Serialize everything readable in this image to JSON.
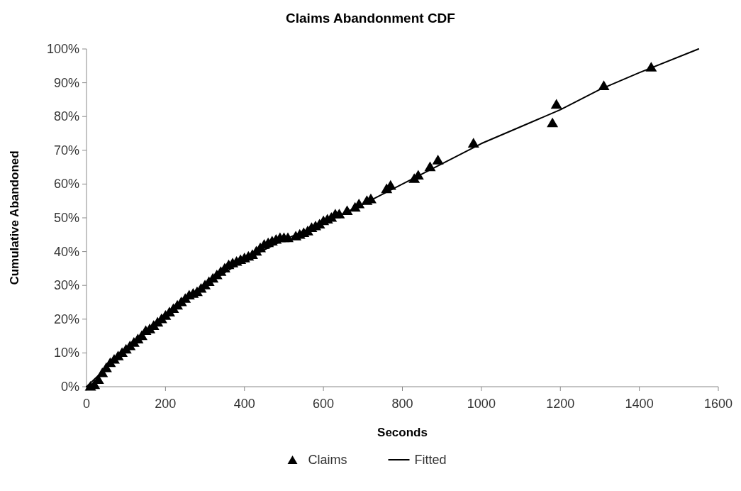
{
  "chart_data": {
    "type": "scatter",
    "title": "Claims Abandonment CDF",
    "xlabel": "Seconds",
    "ylabel": "Cumulative Abandoned",
    "xlim": [
      0,
      1600
    ],
    "xticks": [
      0,
      200,
      400,
      600,
      800,
      1000,
      1200,
      1400,
      1600
    ],
    "ylim": [
      0,
      100
    ],
    "yticks": [
      {
        "value": 0,
        "label": "0%"
      },
      {
        "value": 10,
        "label": "10%"
      },
      {
        "value": 20,
        "label": "20%"
      },
      {
        "value": 30,
        "label": "30%"
      },
      {
        "value": 40,
        "label": "40%"
      },
      {
        "value": 50,
        "label": "50%"
      },
      {
        "value": 60,
        "label": "60%"
      },
      {
        "value": 70,
        "label": "70%"
      },
      {
        "value": 80,
        "label": "80%"
      },
      {
        "value": 90,
        "label": "90%"
      },
      {
        "value": 100,
        "label": "100%"
      }
    ],
    "grid": false,
    "legend": "bottom",
    "series": [
      {
        "name": "Claims",
        "type": "scatter",
        "marker": "triangle",
        "color": "#000000",
        "x": [
          10,
          20,
          30,
          40,
          50,
          60,
          70,
          80,
          90,
          100,
          110,
          120,
          130,
          140,
          150,
          160,
          170,
          180,
          190,
          200,
          210,
          220,
          230,
          240,
          250,
          260,
          270,
          280,
          290,
          300,
          310,
          320,
          330,
          340,
          350,
          360,
          370,
          380,
          390,
          400,
          410,
          420,
          430,
          440,
          450,
          460,
          470,
          480,
          490,
          500,
          510,
          530,
          540,
          550,
          560,
          570,
          580,
          590,
          600,
          610,
          620,
          630,
          640,
          660,
          680,
          690,
          710,
          720,
          760,
          770,
          830,
          840,
          870,
          890,
          980,
          1180,
          1190,
          1310,
          1430
        ],
        "values": [
          0,
          0.5,
          2,
          4,
          5.5,
          7,
          8,
          9,
          10,
          11,
          12,
          13,
          14,
          15,
          16.5,
          17,
          18,
          19,
          20,
          21,
          22,
          23,
          24,
          25,
          26,
          27,
          27.5,
          28,
          29,
          30,
          31,
          32,
          33,
          34,
          35,
          36,
          36.5,
          37,
          37.5,
          38,
          38.5,
          39,
          40,
          41,
          42,
          42.5,
          43,
          43.5,
          44,
          44,
          44,
          44.5,
          45,
          45.5,
          46,
          47,
          47.5,
          48,
          49,
          49.5,
          50,
          51,
          51,
          52,
          53,
          54,
          55,
          55.5,
          58.5,
          59.5,
          61.5,
          62.5,
          65,
          67,
          72,
          78,
          83.5,
          89,
          94.5
        ]
      },
      {
        "name": "Fitted",
        "type": "line",
        "marker": "none",
        "line_style": "solid",
        "color": "#000000",
        "x": [
          0,
          50,
          100,
          200,
          300,
          400,
          500,
          600,
          700,
          800,
          900,
          1000,
          1100,
          1200,
          1300,
          1400,
          1550
        ],
        "values": [
          0,
          5.5,
          11,
          21,
          30,
          37.5,
          43.5,
          48.5,
          54,
          60,
          66,
          72,
          77,
          82,
          88,
          93,
          100
        ]
      }
    ]
  }
}
